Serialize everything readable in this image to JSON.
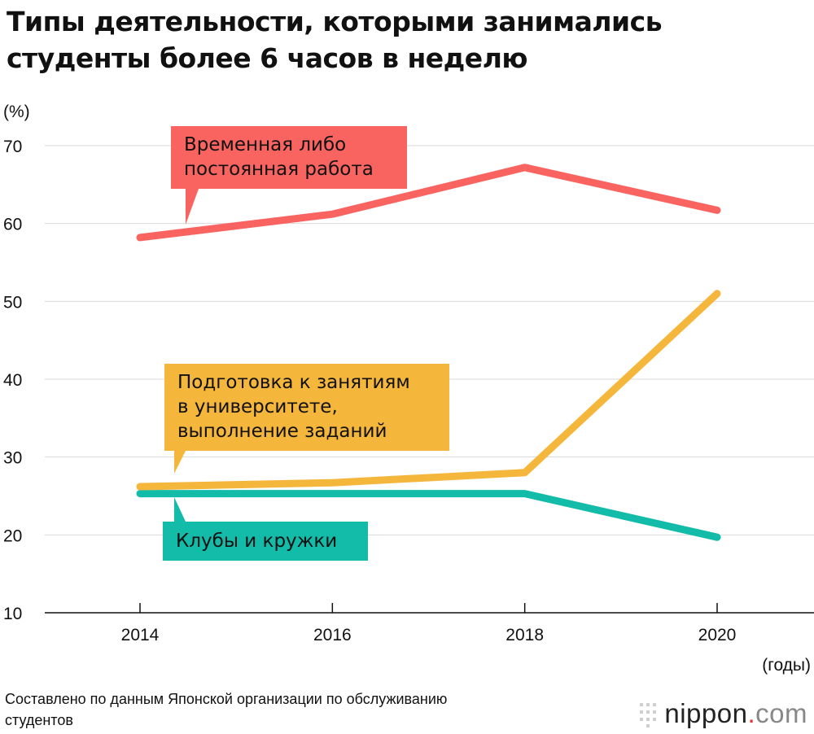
{
  "title": {
    "line1": "Типы деятельности, которыми занимались",
    "line2": "студенты более 6 часов в неделю"
  },
  "chart_data": {
    "type": "line",
    "title": "Типы деятельности, которыми занимались студенты более 6 часов в неделю",
    "y_unit": "(%)",
    "x_unit": "(годы)",
    "x": [
      2014,
      2016,
      2018,
      2020
    ],
    "xlim": [
      2013,
      2021
    ],
    "ylim": [
      10,
      73
    ],
    "y_ticks": [
      10,
      20,
      30,
      40,
      50,
      60,
      70
    ],
    "grid": "horizontal",
    "series": [
      {
        "name": "Временная либо постоянная работа",
        "name_lines": [
          "Временная либо",
          "постоянная работа"
        ],
        "values": [
          58.2,
          61.2,
          67.2,
          61.7
        ],
        "color": "#f96460"
      },
      {
        "name": "Подготовка к занятиям в университете, выполнение заданий",
        "name_lines": [
          "Подготовка к занятиям",
          "в университете,",
          "выполнение заданий"
        ],
        "values": [
          26.2,
          26.7,
          28.0,
          51.0
        ],
        "color": "#f5b63c"
      },
      {
        "name": "Клубы и кружки",
        "name_lines": [
          "Клубы и кружки"
        ],
        "values": [
          25.3,
          25.3,
          25.3,
          19.7
        ],
        "color": "#13bba9"
      }
    ]
  },
  "source": {
    "line1": "Составлено по данным Японской организации по обслуживанию",
    "line2": "студентов"
  },
  "brand": {
    "name": "nippon",
    "dot": ".",
    "suffix": "com"
  }
}
